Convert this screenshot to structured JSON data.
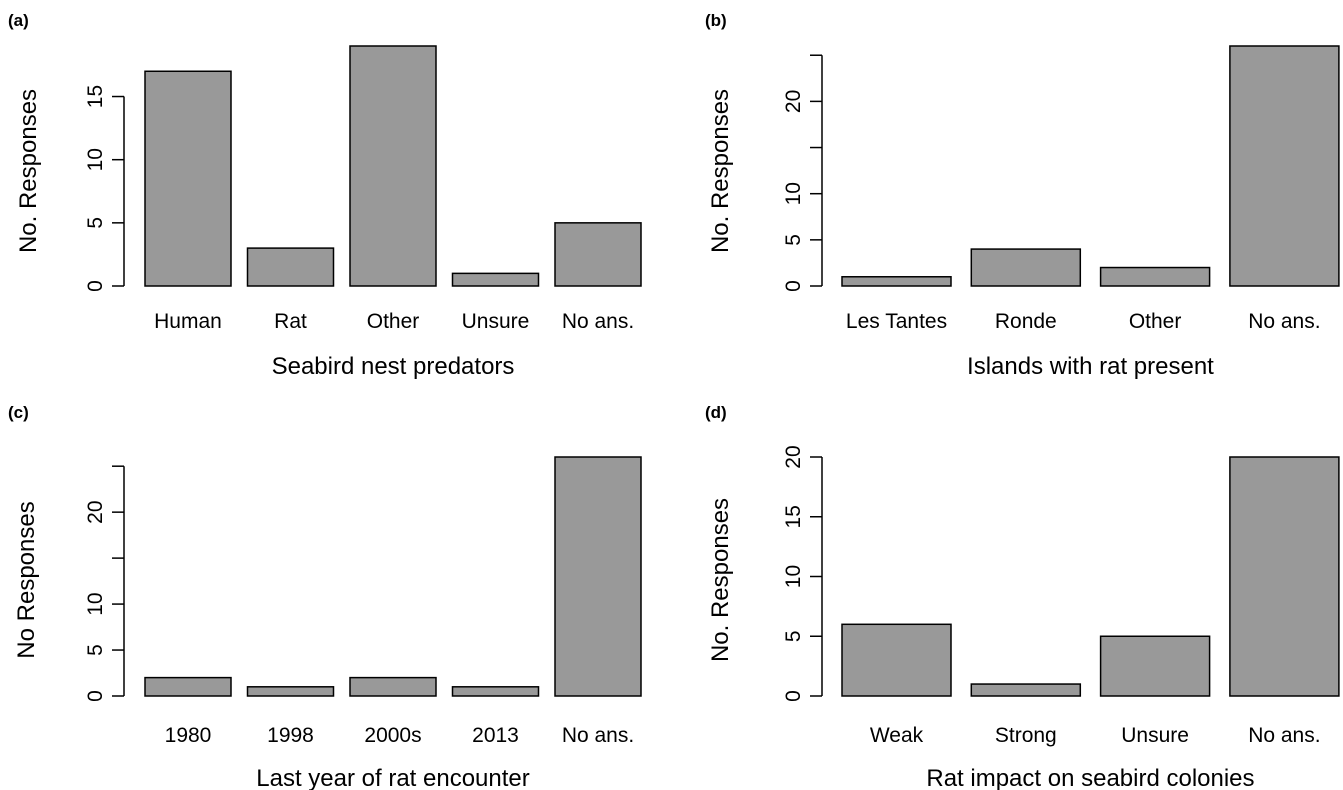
{
  "chart_data": [
    {
      "panel": "(a)",
      "type": "bar",
      "categories": [
        "Human",
        "Rat",
        "Other",
        "Unsure",
        "No ans."
      ],
      "values": [
        17,
        3,
        19,
        1,
        5
      ],
      "xlabel": "Seabird nest predators",
      "ylabel": "No. Responses",
      "yticks": [
        0,
        5,
        10,
        15
      ],
      "ylim": [
        0,
        19
      ],
      "color": "#999999"
    },
    {
      "panel": "(b)",
      "type": "bar",
      "categories": [
        "Les Tantes",
        "Ronde",
        "Other",
        "No ans."
      ],
      "values": [
        1,
        4,
        2,
        26
      ],
      "xlabel": "Islands with rat present",
      "ylabel": "No. Responses",
      "yticks": [
        0,
        5,
        10,
        20
      ],
      "yticks_unlabeled": [
        15,
        25
      ],
      "ylim": [
        0,
        26
      ],
      "color": "#999999"
    },
    {
      "panel": "(c)",
      "type": "bar",
      "categories": [
        "1980",
        "1998",
        "2000s",
        "2013",
        "No ans."
      ],
      "values": [
        2,
        1,
        2,
        1,
        26
      ],
      "xlabel": "Last year of rat encounter",
      "ylabel": "No Responses",
      "yticks": [
        0,
        5,
        10,
        20
      ],
      "yticks_unlabeled": [
        15,
        25
      ],
      "ylim": [
        0,
        26
      ],
      "color": "#999999"
    },
    {
      "panel": "(d)",
      "type": "bar",
      "categories": [
        "Weak",
        "Strong",
        "Unsure",
        "No ans."
      ],
      "values": [
        6,
        1,
        5,
        20
      ],
      "xlabel": "Rat impact on seabird colonies",
      "ylabel": "No. Responses",
      "yticks": [
        0,
        5,
        10,
        15,
        20
      ],
      "ylim": [
        0,
        20
      ],
      "color": "#999999"
    }
  ]
}
